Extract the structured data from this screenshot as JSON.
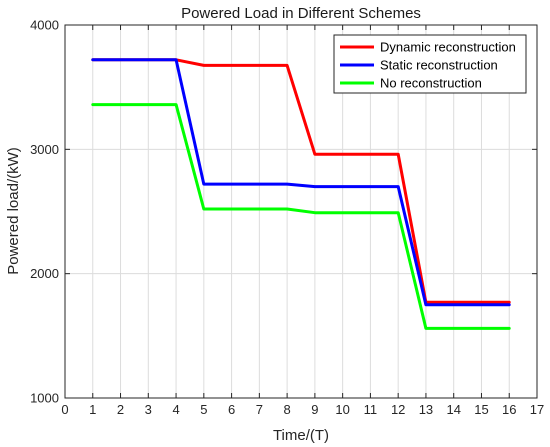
{
  "chart_data": {
    "type": "line",
    "title": "Powered Load in Different Schemes",
    "xlabel": "Time/(T)",
    "ylabel": "Powered load/(kW)",
    "xlim": [
      0,
      17
    ],
    "ylim": [
      1000,
      4000
    ],
    "xticks": [
      0,
      1,
      2,
      3,
      4,
      5,
      6,
      7,
      8,
      9,
      10,
      11,
      12,
      13,
      14,
      15,
      16,
      17
    ],
    "yticks": [
      1000,
      2000,
      3000,
      4000
    ],
    "grid": true,
    "legend_position": "top-right",
    "x": [
      1,
      2,
      3,
      4,
      5,
      6,
      7,
      8,
      9,
      10,
      11,
      12,
      13,
      14,
      15,
      16
    ],
    "series": [
      {
        "name": "Dynamic reconstruction",
        "color": "#ff0000",
        "values": [
          3720,
          3720,
          3720,
          3720,
          3675,
          3675,
          3675,
          3675,
          2960,
          2960,
          2960,
          2960,
          1770,
          1770,
          1770,
          1770
        ]
      },
      {
        "name": "Static reconstruction",
        "color": "#0000ff",
        "values": [
          3720,
          3720,
          3720,
          3720,
          2720,
          2720,
          2720,
          2720,
          2700,
          2700,
          2700,
          2700,
          1750,
          1750,
          1750,
          1750
        ]
      },
      {
        "name": "No reconstruction",
        "color": "#00ff00",
        "values": [
          3360,
          3360,
          3360,
          3360,
          2520,
          2520,
          2520,
          2520,
          2490,
          2490,
          2490,
          2490,
          1560,
          1560,
          1560,
          1560
        ]
      }
    ]
  }
}
